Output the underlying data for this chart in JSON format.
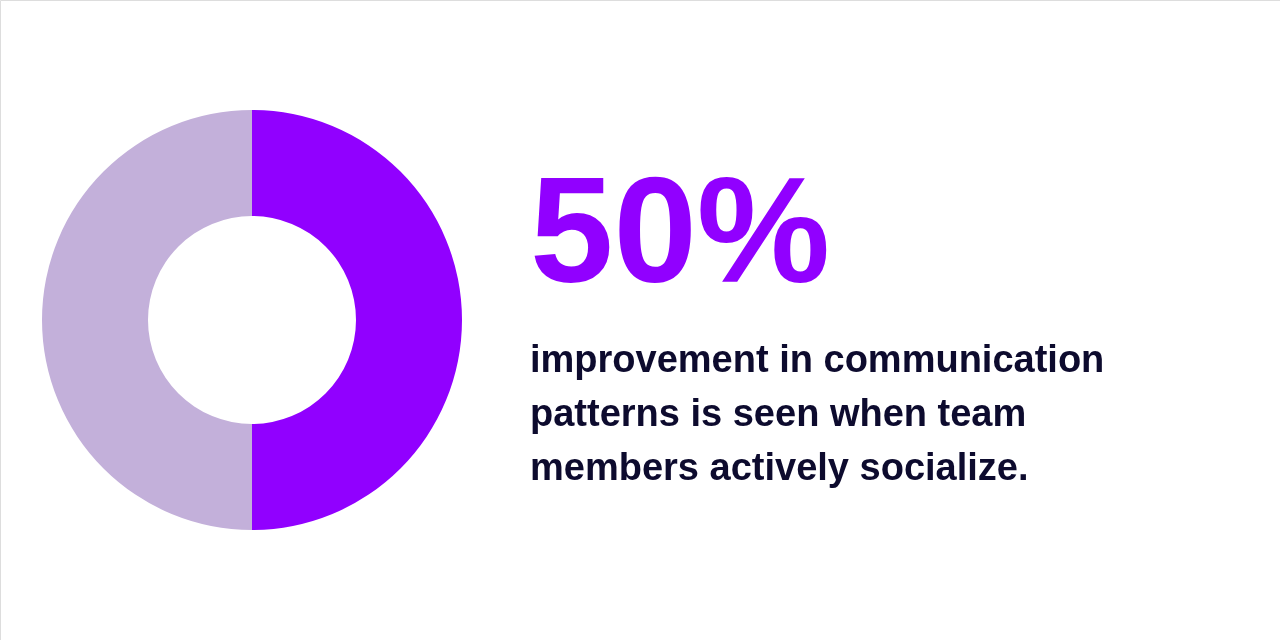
{
  "chart_data": {
    "type": "donut",
    "categories": [
      null,
      null
    ],
    "values": [
      50,
      50
    ],
    "colors": [
      "#9100ff",
      "#c3b0da"
    ],
    "value_labels": [
      "50%",
      null
    ],
    "annotations": [
      "improvement in communication patterns is seen when team members actively socialize."
    ]
  }
}
